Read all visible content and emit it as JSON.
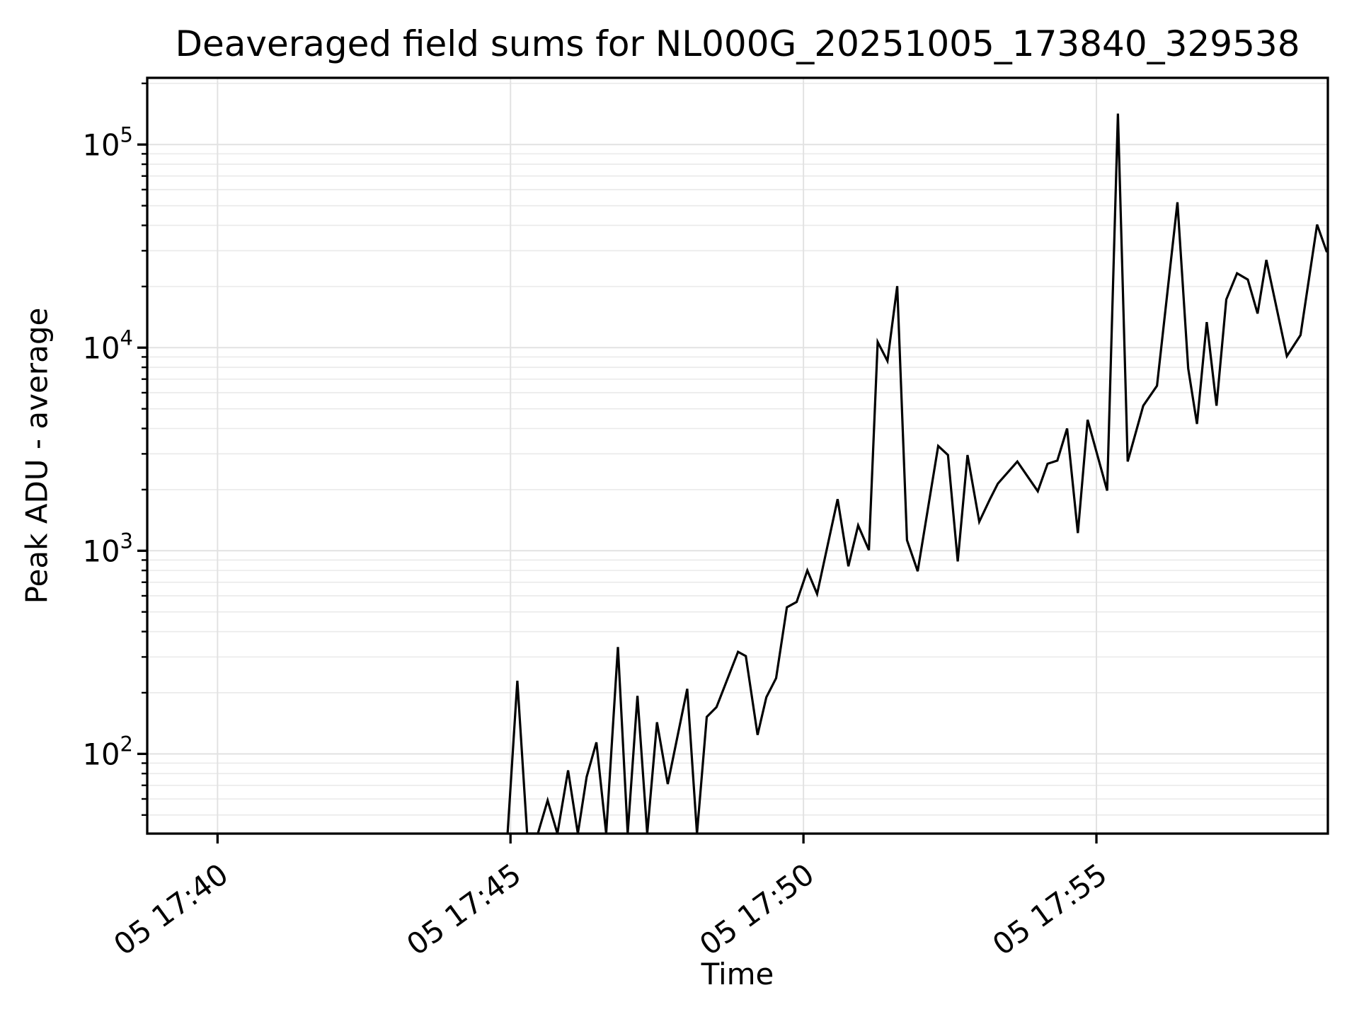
{
  "figure": {
    "title": "Deaveraged field sums for NL000G_20251005_173840_329538"
  },
  "chart_data": {
    "type": "line",
    "title": "Deaveraged field sums for NL000G_20251005_173840_329538",
    "xlabel": "Time",
    "ylabel": "Peak ADU - average",
    "legend": null,
    "x_axis": {
      "scale": "time",
      "day_prefix": "05",
      "range": [
        "17:38:48",
        "17:58:57"
      ],
      "ticks": [
        {
          "time": "17:40:00",
          "label": "05 17:40"
        },
        {
          "time": "17:45:00",
          "label": "05 17:45"
        },
        {
          "time": "17:50:00",
          "label": "05 17:50"
        },
        {
          "time": "17:55:00",
          "label": "05 17:55"
        }
      ],
      "tick_rotation_deg": 36
    },
    "y_axis": {
      "scale": "log",
      "range": [
        40.5,
        213000
      ],
      "ticks": [
        {
          "value": 100,
          "base": "10",
          "exp": "2",
          "label": "10^2"
        },
        {
          "value": 1000,
          "base": "10",
          "exp": "3",
          "label": "10^3"
        },
        {
          "value": 10000,
          "base": "10",
          "exp": "4",
          "label": "10^4"
        },
        {
          "value": 100000,
          "base": "10",
          "exp": "5",
          "label": "10^5"
        }
      ]
    },
    "grid": {
      "x_major": true,
      "y_major": true,
      "y_minor": true
    },
    "series": [
      {
        "name": "peak_adu_deaveraged",
        "color": "#000000",
        "points": [
          [
            "17:44:57",
            1
          ],
          [
            "17:45:07",
            229
          ],
          [
            "17:45:17",
            1
          ],
          [
            "17:45:28",
            1
          ],
          [
            "17:45:38",
            59
          ],
          [
            "17:45:48",
            1
          ],
          [
            "17:45:59",
            83
          ],
          [
            "17:46:09",
            1
          ],
          [
            "17:46:18",
            77
          ],
          [
            "17:46:28",
            114
          ],
          [
            "17:46:38",
            1
          ],
          [
            "17:46:50",
            336
          ],
          [
            "17:47:00",
            1
          ],
          [
            "17:47:10",
            193
          ],
          [
            "17:47:20",
            1
          ],
          [
            "17:47:30",
            143
          ],
          [
            "17:47:41",
            71
          ],
          [
            "17:48:01",
            209
          ],
          [
            "17:48:11",
            1
          ],
          [
            "17:48:21",
            152
          ],
          [
            "17:48:31",
            170
          ],
          [
            "17:48:53",
            318
          ],
          [
            "17:49:01",
            303
          ],
          [
            "17:49:13",
            124
          ],
          [
            "17:49:22",
            190
          ],
          [
            "17:49:32",
            236
          ],
          [
            "17:49:43",
            527
          ],
          [
            "17:49:53",
            560
          ],
          [
            "17:50:04",
            800
          ],
          [
            "17:50:14",
            613
          ],
          [
            "17:50:35",
            1795
          ],
          [
            "17:50:46",
            838
          ],
          [
            "17:50:56",
            1334
          ],
          [
            "17:51:07",
            1007
          ],
          [
            "17:51:16",
            10670
          ],
          [
            "17:51:26",
            8600
          ],
          [
            "17:51:36",
            20100
          ],
          [
            "17:51:46",
            1128
          ],
          [
            "17:51:57",
            793
          ],
          [
            "17:52:18",
            3280
          ],
          [
            "17:52:28",
            2960
          ],
          [
            "17:52:38",
            887
          ],
          [
            "17:52:48",
            2960
          ],
          [
            "17:53:00",
            1390
          ],
          [
            "17:53:11",
            1795
          ],
          [
            "17:53:19",
            2140
          ],
          [
            "17:53:39",
            2750
          ],
          [
            "17:54:00",
            1963
          ],
          [
            "17:54:10",
            2680
          ],
          [
            "17:54:20",
            2780
          ],
          [
            "17:54:30",
            4000
          ],
          [
            "17:54:41",
            1222
          ],
          [
            "17:54:51",
            4413
          ],
          [
            "17:55:11",
            1978
          ],
          [
            "17:55:22",
            142000
          ],
          [
            "17:55:32",
            2750
          ],
          [
            "17:55:48",
            5180
          ],
          [
            "17:56:02",
            6490
          ],
          [
            "17:56:23",
            52000
          ],
          [
            "17:56:34",
            7900
          ],
          [
            "17:56:43",
            4210
          ],
          [
            "17:56:53",
            13360
          ],
          [
            "17:57:03",
            5180
          ],
          [
            "17:57:13",
            17270
          ],
          [
            "17:57:24",
            23230
          ],
          [
            "17:57:35",
            21630
          ],
          [
            "17:57:45",
            14720
          ],
          [
            "17:57:54",
            27040
          ],
          [
            "17:58:15",
            9080
          ],
          [
            "17:58:29",
            11530
          ],
          [
            "17:58:46",
            40360
          ],
          [
            "17:58:56",
            29500
          ]
        ]
      }
    ]
  },
  "colors": {
    "background": "#ffffff",
    "line": "#000000",
    "text": "#000000",
    "spine": "#000000",
    "grid_major": "#e2e2e2",
    "grid_minor": "#eaeaea"
  }
}
